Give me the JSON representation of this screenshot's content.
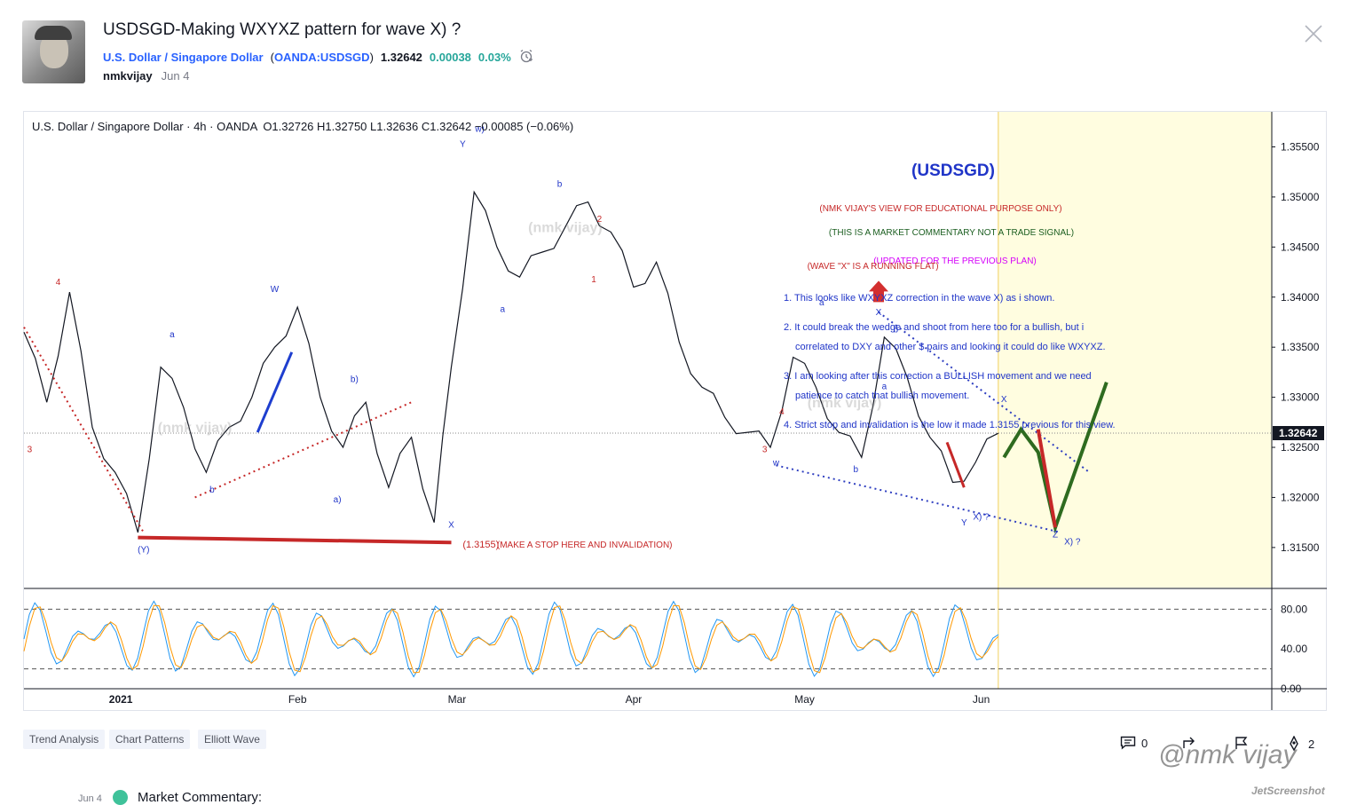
{
  "header": {
    "title": "USDSGD-Making WXYXZ pattern for wave X) ?",
    "symbol_name": "U.S. Dollar / Singapore Dollar",
    "symbol_code": "OANDA:USDSGD",
    "price": "1.32642",
    "change": "0.00038",
    "change_pct": "0.03%",
    "author": "nmkvijay",
    "date": "Jun 4"
  },
  "chart_legend": {
    "instrument": "U.S. Dollar / Singapore Dollar · 4h · OANDA",
    "ohlc": "O1.32726 H1.32750 L1.32636 C1.32642 −0.00085 (−0.06%)"
  },
  "chart_data": {
    "type": "line",
    "title": "U.S. Dollar / Singapore Dollar · 4h · OANDA",
    "xlabel": "",
    "ylabel": "",
    "x_ticks": [
      "2021",
      "Feb",
      "Mar",
      "Apr",
      "May",
      "Jun"
    ],
    "y_ticks": [
      "1.35500",
      "1.35000",
      "1.34500",
      "1.34000",
      "1.33500",
      "1.33000",
      "1.32500",
      "1.32000",
      "1.31500"
    ],
    "ylim": [
      1.311,
      1.3585
    ],
    "last_price_label": "1.32642",
    "series": [
      {
        "x": [
          "2020-12-15",
          "2020-12-19",
          "2020-12-23",
          "2020-12-27",
          "2020-12-31",
          "2021-01-04",
          "2021-01-08",
          "2021-01-12",
          "2021-01-16",
          "2021-01-20",
          "2021-01-24",
          "2021-01-28",
          "2021-02-01",
          "2021-02-05",
          "2021-02-09",
          "2021-02-13",
          "2021-02-17",
          "2021-02-21",
          "2021-02-25",
          "2021-02-28",
          "2021-03-04",
          "2021-03-08",
          "2021-03-12",
          "2021-03-16",
          "2021-03-20",
          "2021-03-24",
          "2021-03-28",
          "2021-04-01",
          "2021-04-05",
          "2021-04-09",
          "2021-04-13",
          "2021-04-17",
          "2021-04-21",
          "2021-04-25",
          "2021-04-29",
          "2021-05-03",
          "2021-05-07",
          "2021-05-11",
          "2021-05-15",
          "2021-05-19",
          "2021-05-23",
          "2021-05-27",
          "2021-05-31",
          "2021-06-04"
        ],
        "y": [
          1.3365,
          1.3295,
          1.3405,
          1.327,
          1.3225,
          1.3165,
          1.333,
          1.329,
          1.3225,
          1.327,
          1.33,
          1.335,
          1.339,
          1.33,
          1.325,
          1.3295,
          1.321,
          1.326,
          1.3175,
          1.333,
          1.3505,
          1.345,
          1.342,
          1.3445,
          1.347,
          1.3495,
          1.3465,
          1.341,
          1.3435,
          1.3355,
          1.331,
          1.328,
          1.3265,
          1.325,
          1.334,
          1.331,
          1.3265,
          1.324,
          1.336,
          1.332,
          1.326,
          1.3215,
          1.3235,
          1.3264
        ]
      }
    ],
    "oscillator": {
      "ticks": [
        "80.00",
        "40.00",
        "0.00"
      ],
      "ylim": [
        0,
        100
      ],
      "bands": [
        80,
        20
      ]
    },
    "shaded_zone_color": "#fffde0",
    "annotations": {
      "box_title": "(USDSGD)",
      "disclaimer1": "(NMK VIJAY'S VIEW FOR EDUCATIONAL PURPOSE ONLY)",
      "disclaimer2": "(THIS IS A MARKET COMMENTARY NOT A TRADE SIGNAL)",
      "updated": "(UPDATED FOR THE PREVIOUS PLAN)",
      "point1": "1. This looks like WXYXZ correction in the wave X) as i shown.",
      "point2a": "2. It could  break the wedge and shoot from here too for a bullish, but i",
      "point2b": "correlated to DXY and other $ pairs and looking it could do like WXYXZ.",
      "point3a": "3. I am looking after this correction a BULLISH movement and we need",
      "point3b": "patience to catch that bullish movement.",
      "point4": "4. Strict stop and invalidation is the low it made 1.3155 previous for this view.",
      "running_flat": "(WAVE \"X\" IS A RUNNING FLAT)",
      "stop_level": "(1.3155)",
      "stop_note": "(MAKE A STOP HERE AND INVALIDATION)",
      "watermark": "(nmk vijay)",
      "wave_labels": [
        {
          "t": "4",
          "date": "2020-12-21",
          "price": 1.3412,
          "c": "red"
        },
        {
          "t": "3",
          "date": "2020-12-16",
          "price": 1.3245,
          "c": "red"
        },
        {
          "t": "(Y)",
          "date": "2021-01-05",
          "price": 1.3145,
          "c": "blue"
        },
        {
          "t": "a",
          "date": "2021-01-10",
          "price": 1.336,
          "c": "blue"
        },
        {
          "t": "b",
          "date": "2021-01-17",
          "price": 1.3205,
          "c": "blue"
        },
        {
          "t": "W",
          "date": "2021-01-28",
          "price": 1.3405,
          "c": "blue"
        },
        {
          "t": "b)",
          "date": "2021-02-11",
          "price": 1.3315,
          "c": "blue"
        },
        {
          "t": "a)",
          "date": "2021-02-08",
          "price": 1.3195,
          "c": "blue"
        },
        {
          "t": "X",
          "date": "2021-02-28",
          "price": 1.317,
          "c": "blue"
        },
        {
          "t": "Y",
          "date": "2021-03-02",
          "price": 1.355,
          "c": "blue"
        },
        {
          "t": "w)",
          "date": "2021-03-05",
          "price": 1.3565,
          "c": "blue"
        },
        {
          "t": "a",
          "date": "2021-03-09",
          "price": 1.3385,
          "c": "blue"
        },
        {
          "t": "b",
          "date": "2021-03-19",
          "price": 1.351,
          "c": "blue"
        },
        {
          "t": "2",
          "date": "2021-03-26",
          "price": 1.3475,
          "c": "red"
        },
        {
          "t": "1",
          "date": "2021-03-25",
          "price": 1.3415,
          "c": "red"
        },
        {
          "t": "3",
          "date": "2021-04-24",
          "price": 1.3245,
          "c": "red"
        },
        {
          "t": "w",
          "date": "2021-04-26",
          "price": 1.3232,
          "c": "blue"
        },
        {
          "t": "4",
          "date": "2021-04-27",
          "price": 1.3283,
          "c": "red"
        },
        {
          "t": "a",
          "date": "2021-05-04",
          "price": 1.3392,
          "c": "blue"
        },
        {
          "t": "b",
          "date": "2021-05-10",
          "price": 1.3225,
          "c": "blue"
        },
        {
          "t": "X",
          "date": "2021-05-14",
          "price": 1.3382,
          "c": "blue"
        },
        {
          "t": "b",
          "date": "2021-05-17",
          "price": 1.3365,
          "c": "blue"
        },
        {
          "t": "a",
          "date": "2021-05-15",
          "price": 1.3308,
          "c": "blue"
        },
        {
          "t": "Y",
          "date": "2021-05-29",
          "price": 1.3172,
          "c": "blue"
        },
        {
          "t": "X) ?",
          "date": "2021-06-01",
          "price": 1.3178,
          "c": "blue"
        },
        {
          "t": "X",
          "date": "2021-06-05",
          "price": 1.3295,
          "c": "blue"
        },
        {
          "t": "Z",
          "date": "2021-06-14",
          "price": 1.316,
          "c": "blue"
        },
        {
          "t": "X) ?",
          "date": "2021-06-17",
          "price": 1.3153,
          "c": "blue"
        }
      ]
    }
  },
  "tags": [
    "Trend Analysis",
    "Chart Patterns",
    "Elliott Wave"
  ],
  "social": {
    "comments": "0",
    "boosts": "2"
  },
  "watermark_text": "@nmk vijay",
  "jet_text": "JetScreenshot",
  "footer": {
    "date": "Jun 4",
    "label": "Market Commentary:"
  }
}
